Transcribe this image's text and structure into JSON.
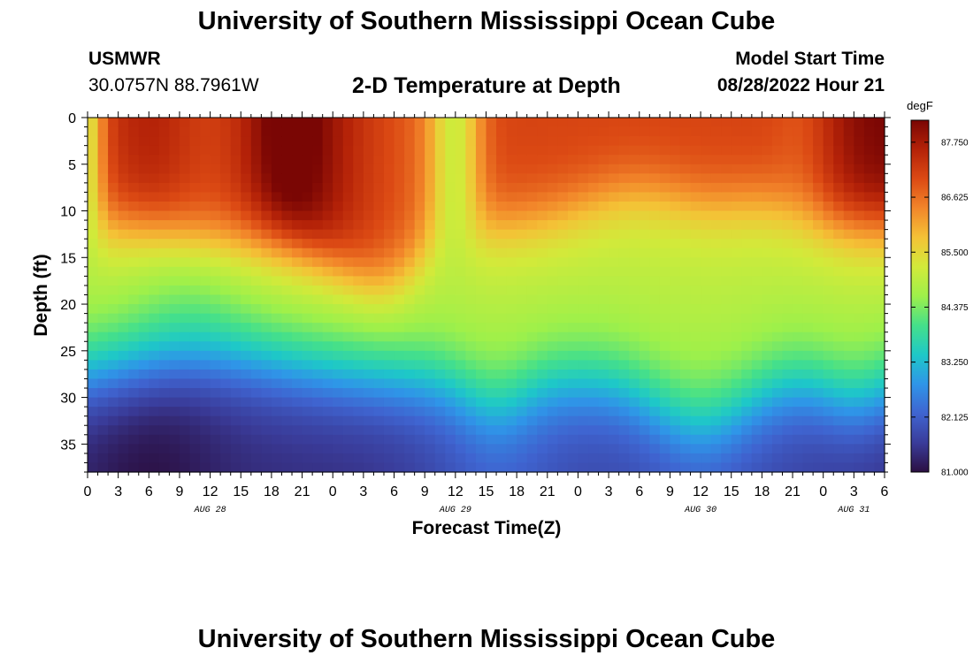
{
  "header": {
    "title": "University of Southern Mississippi Ocean Cube",
    "station": "USMWR",
    "coords": "30.0757N  88.7961W",
    "subtitle": "2-D Temperature at Depth",
    "start_label": "Model Start Time",
    "start_value": "08/28/2022 Hour 21"
  },
  "footer": {
    "title": "University of Southern Mississippi Ocean Cube"
  },
  "chart_data": {
    "type": "heatmap",
    "title": "2-D Temperature at Depth",
    "xlabel": "Forecast Time(Z)",
    "ylabel": "Depth (ft)",
    "x_range_hours": [
      0,
      78
    ],
    "y_range_ft": [
      0,
      38
    ],
    "x_ticks": [
      "0",
      "3",
      "6",
      "9",
      "12",
      "15",
      "18",
      "21",
      "0",
      "3",
      "6",
      "9",
      "12",
      "15",
      "18",
      "21",
      "0",
      "3",
      "6",
      "9",
      "12",
      "15",
      "18",
      "21",
      "0",
      "3",
      "6"
    ],
    "y_ticks": [
      "0",
      "5",
      "10",
      "15",
      "20",
      "25",
      "30",
      "35"
    ],
    "date_labels": [
      {
        "text": "AUG 28",
        "hour": 12
      },
      {
        "text": "AUG 29",
        "hour": 36
      },
      {
        "text": "AUG 30",
        "hour": 60
      },
      {
        "text": "AUG 31",
        "hour": 75
      }
    ],
    "colorbar": {
      "unit": "degF",
      "min": 81.0,
      "max": 88.2,
      "ticks": [
        "87.750",
        "86.625",
        "85.500",
        "84.375",
        "83.250",
        "82.125",
        "81.000"
      ]
    },
    "colormap": [
      "#2b0f42",
      "#3a3c9a",
      "#3f64d0",
      "#2f95e8",
      "#1ec8c8",
      "#45e08a",
      "#9ef04a",
      "#d2ea3a",
      "#f4c236",
      "#f2862a",
      "#dc4a14",
      "#b42208",
      "#7a0604"
    ],
    "cell_size": {
      "hours": 1,
      "feet": 1
    },
    "field_description": "Warm layer (86-88F) in upper ~10 ft, cooling with depth to ~81F at 38 ft"
  }
}
